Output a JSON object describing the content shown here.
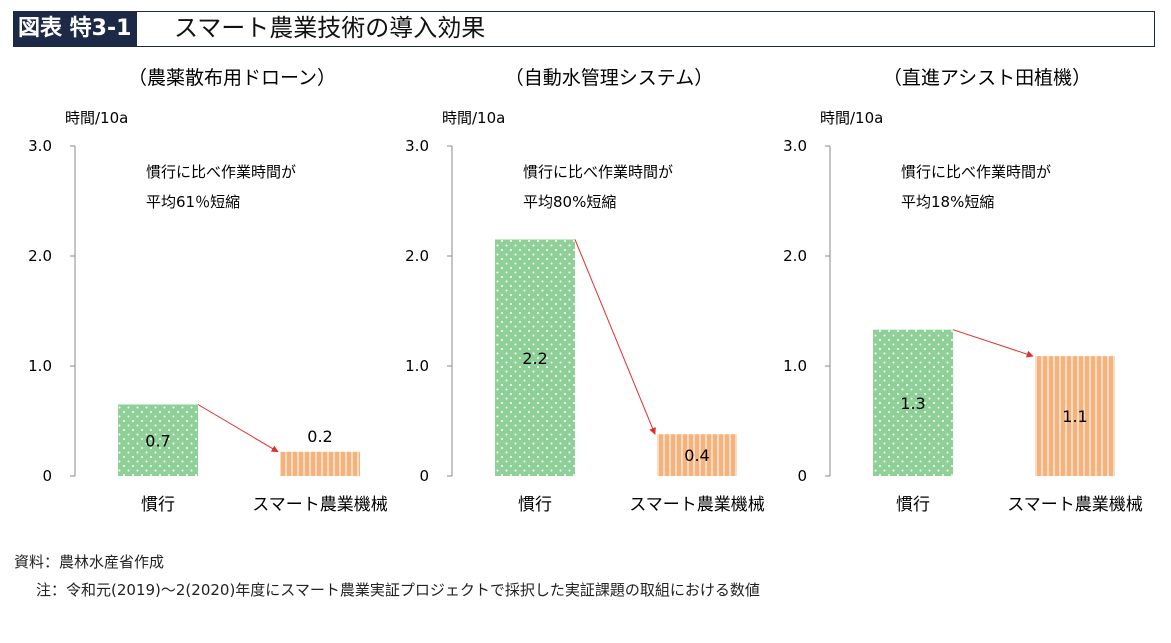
{
  "header": {
    "label": "図表 特3-1",
    "title": "スマート農業技術の導入効果"
  },
  "chart_data": [
    {
      "type": "bar",
      "title": "（農薬散布用ドローン）",
      "ylabel": "時間/10a",
      "ylim": [
        0,
        3.0
      ],
      "yticks": [
        "0",
        "1.0",
        "2.0",
        "3.0"
      ],
      "categories": [
        "慣行",
        "スマート農業機械"
      ],
      "values": [
        0.65,
        0.22
      ],
      "data_labels": [
        "0.7",
        "0.2"
      ],
      "annotation": [
        "慣行に比べ作業時間が",
        "平均61％短縮"
      ]
    },
    {
      "type": "bar",
      "title": "（自動水管理システム）",
      "ylabel": "時間/10a",
      "ylim": [
        0,
        3.0
      ],
      "yticks": [
        "0",
        "1.0",
        "2.0",
        "3.0"
      ],
      "categories": [
        "慣行",
        "スマート農業機械"
      ],
      "values": [
        2.15,
        0.38
      ],
      "data_labels": [
        "2.2",
        "0.4"
      ],
      "annotation": [
        "慣行に比べ作業時間が",
        "平均80%短縮"
      ]
    },
    {
      "type": "bar",
      "title": "（直進アシスト田植機）",
      "ylabel": "時間/10a",
      "ylim": [
        0,
        3.0
      ],
      "yticks": [
        "0",
        "1.0",
        "2.0",
        "3.0"
      ],
      "categories": [
        "慣行",
        "スマート農業機械"
      ],
      "values": [
        1.33,
        1.09
      ],
      "data_labels": [
        "1.3",
        "1.1"
      ],
      "annotation": [
        "慣行に比べ作業時間が",
        "平均18%短縮"
      ]
    }
  ],
  "colors": {
    "conventional": "#8fcf98",
    "smart": "#f6b27c",
    "smart_stripe": "#fde6d2",
    "arrow": "#e0302a",
    "header_bg": "#1c2a48"
  },
  "footnotes": {
    "source": "資料：農林水産省作成",
    "note": "注：令和元(2019)～2(2020)年度にスマート農業実証プロジェクトで採択した実証課題の取組における数値"
  }
}
